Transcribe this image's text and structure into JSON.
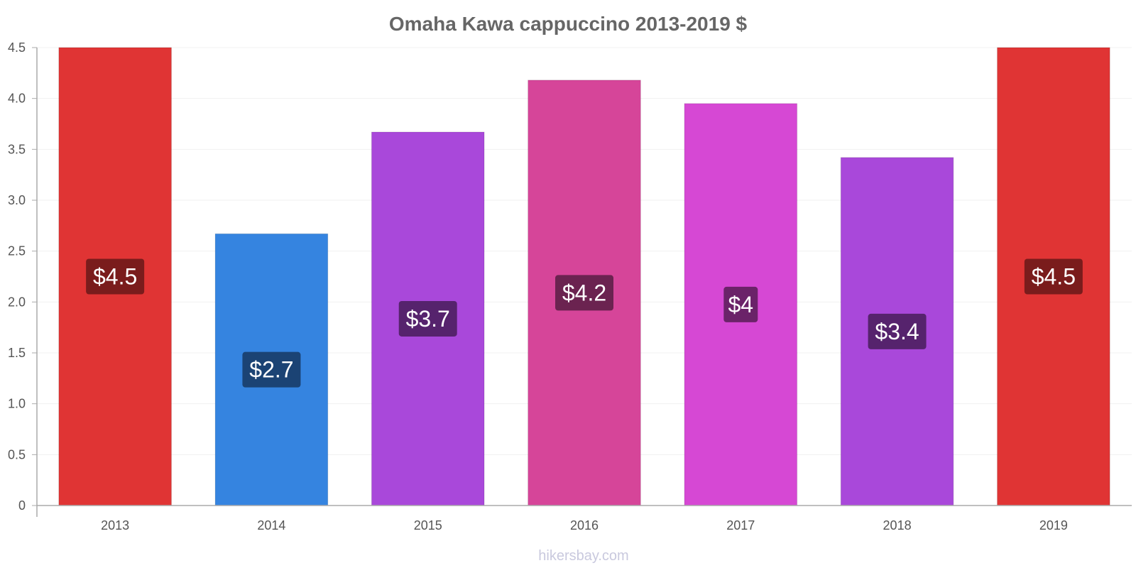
{
  "chart_data": {
    "type": "bar",
    "title": "Omaha Kawa cappuccino 2013-2019 $",
    "categories": [
      "2013",
      "2014",
      "2015",
      "2016",
      "2017",
      "2018",
      "2019"
    ],
    "values": [
      4.5,
      2.67,
      3.67,
      4.18,
      3.95,
      3.42,
      4.5
    ],
    "data_labels": [
      "$4.5",
      "$2.7",
      "$3.7",
      "$4.2",
      "$4",
      "$3.4",
      "$4.5"
    ],
    "colors": [
      "#e03434",
      "#3584e0",
      "#a948da",
      "#d64599",
      "#d648d4",
      "#a948da",
      "#e03434"
    ],
    "label_bg_colors": [
      "#7a1c1c",
      "#1b4374",
      "#56236d",
      "#6b2350",
      "#6b2369",
      "#56236d",
      "#7a1c1c"
    ],
    "ylim": [
      0,
      4.5
    ],
    "y_ticks": [
      0,
      0.5,
      1.0,
      1.5,
      2.0,
      2.5,
      3.0,
      3.5,
      4.0,
      4.5
    ],
    "y_tick_labels": [
      "0",
      "0.5",
      "1.0",
      "1.5",
      "2.0",
      "2.5",
      "3.0",
      "3.5",
      "4.0",
      "4.5"
    ],
    "xlabel": "",
    "ylabel": "",
    "grid": true,
    "legend": "none"
  },
  "watermark": "hikersbay.com"
}
